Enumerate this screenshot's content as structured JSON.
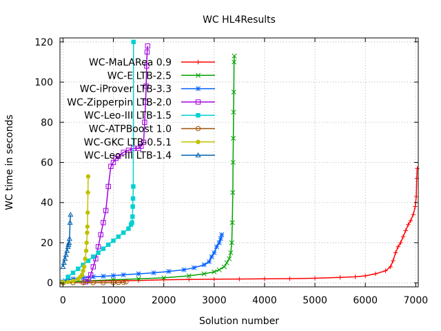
{
  "chart_data": {
    "type": "line",
    "title": "WC HL4Results",
    "xlabel": "Solution number",
    "ylabel": "WC time in seconds",
    "xlim": [
      -60,
      7050
    ],
    "ylim": [
      -2,
      122
    ],
    "xticks": [
      0,
      1000,
      2000,
      3000,
      4000,
      5000,
      6000,
      7000
    ],
    "yticks": [
      0,
      20,
      40,
      60,
      80,
      100,
      120
    ],
    "grid": "on",
    "legend_position": "top-left",
    "series": [
      {
        "name": "WC-MaLARea 0.9",
        "color": "#ff0000",
        "marker": "plus",
        "x": [
          0,
          500,
          1000,
          1500,
          2000,
          2500,
          3000,
          3500,
          4000,
          4500,
          5000,
          5500,
          5800,
          6000,
          6200,
          6400,
          6500,
          6550,
          6600,
          6650,
          6700,
          6750,
          6800,
          6850,
          6900,
          6950,
          6990,
          7010,
          7020,
          7030
        ],
        "y": [
          0.5,
          0.8,
          1.0,
          1.2,
          1.5,
          1.7,
          1.8,
          1.9,
          2.0,
          2.1,
          2.3,
          2.7,
          3.0,
          3.5,
          4.5,
          6.0,
          8.0,
          11,
          15,
          18,
          20,
          23,
          26,
          29,
          31,
          34,
          38,
          43,
          52,
          57
        ]
      },
      {
        "name": "WC-E LTB-2.5",
        "color": "#00a000",
        "marker": "x",
        "x": [
          0,
          500,
          1000,
          1500,
          2000,
          2500,
          2800,
          3000,
          3100,
          3200,
          3250,
          3300,
          3330,
          3350,
          3360,
          3370,
          3375,
          3380,
          3385,
          3390,
          3395,
          3400
        ],
        "y": [
          0.3,
          1.0,
          1.5,
          2.0,
          2.5,
          3.5,
          4.5,
          5.5,
          6.5,
          8.0,
          10,
          12,
          15,
          20,
          30,
          45,
          60,
          72,
          85,
          95,
          110,
          113
        ]
      },
      {
        "name": "WC-iProver LTB-3.3",
        "color": "#0060ff",
        "marker": "star",
        "x": [
          0,
          50,
          100,
          200,
          400,
          600,
          800,
          1000,
          1200,
          1500,
          1800,
          2100,
          2400,
          2600,
          2800,
          2900,
          2950,
          3000,
          3050,
          3100,
          3130,
          3150
        ],
        "y": [
          0.5,
          1.0,
          1.5,
          2.0,
          2.5,
          3.0,
          3.3,
          3.6,
          4.0,
          4.5,
          5.0,
          5.7,
          6.5,
          7.5,
          9.0,
          10.5,
          13,
          15,
          18,
          20,
          22,
          24
        ]
      },
      {
        "name": "WC-Zipperpin LTB-2.0",
        "color": "#a000e0",
        "marker": "box",
        "x": [
          450,
          500,
          550,
          600,
          650,
          700,
          750,
          800,
          850,
          900,
          950,
          1000,
          1050,
          1100,
          1200,
          1300,
          1400,
          1500,
          1550,
          1600,
          1620,
          1640,
          1650,
          1660,
          1670,
          1680
        ],
        "y": [
          0.5,
          2,
          4,
          8,
          12,
          18,
          24,
          30,
          36,
          48,
          58,
          60,
          62,
          63,
          65,
          66,
          67,
          67,
          68,
          70,
          80,
          90,
          98,
          108,
          115,
          118
        ]
      },
      {
        "name": "WC-Leo-III LTB-1.5",
        "color": "#00d0d0",
        "marker": "filled-box",
        "x": [
          0,
          100,
          200,
          300,
          400,
          500,
          600,
          700,
          800,
          900,
          1000,
          1100,
          1200,
          1300,
          1350,
          1370,
          1380,
          1385,
          1390,
          1395,
          1400
        ],
        "y": [
          0.5,
          3,
          5,
          7,
          9,
          11,
          13,
          15,
          17,
          19,
          21,
          23,
          25,
          27,
          29,
          30,
          33,
          38,
          42,
          48,
          120
        ]
      },
      {
        "name": "WC-ATPBoost 1.0",
        "color": "#a05000",
        "marker": "circle",
        "x": [
          0,
          200,
          400,
          600,
          800,
          1000,
          1100,
          1200,
          1250
        ],
        "y": [
          0.1,
          0.1,
          0.1,
          0.1,
          0.1,
          0.1,
          0.2,
          0.3,
          0.5
        ]
      },
      {
        "name": "WC-GKC LTB-0.5.1",
        "color": "#c0c000",
        "marker": "filled-circle",
        "x": [
          0,
          100,
          200,
          300,
          350,
          380,
          400,
          420,
          440,
          460,
          470,
          480,
          485,
          490,
          495,
          500
        ],
        "y": [
          0.3,
          0.5,
          1.0,
          2.0,
          3.0,
          4.0,
          6.0,
          8.0,
          12,
          16,
          20,
          25,
          28,
          35,
          45,
          53
        ]
      },
      {
        "name": "WC-Leo-III LTB-1.4",
        "color": "#0060b0",
        "marker": "triangle",
        "x": [
          0,
          20,
          40,
          60,
          80,
          100,
          110,
          120,
          130,
          140,
          150
        ],
        "y": [
          8,
          10,
          12,
          14,
          16,
          18,
          19,
          20,
          22,
          30,
          34
        ]
      }
    ]
  }
}
